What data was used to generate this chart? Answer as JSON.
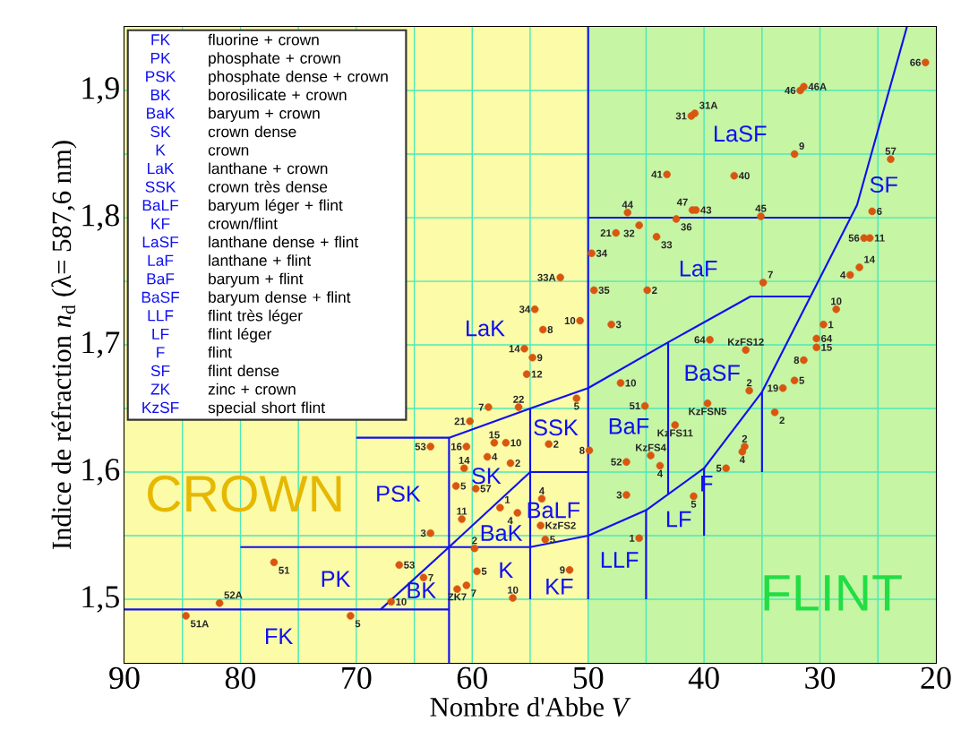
{
  "chart_data": {
    "type": "scatter",
    "xlabel": "Nombre d'Abbe *V*",
    "ylabel": "Indice de réfraction *n*$_{d}$  (λ= 587,6 nm)",
    "xlim": [
      90,
      20
    ],
    "ylim": [
      1.45,
      1.95
    ],
    "xticks": [
      90,
      80,
      70,
      60,
      50,
      40,
      30,
      20
    ],
    "yticks": [
      {
        "value": 1.5,
        "label": "1,5"
      },
      {
        "value": 1.6,
        "label": "1,6"
      },
      {
        "value": 1.7,
        "label": "1,7"
      },
      {
        "value": 1.8,
        "label": "1,8"
      },
      {
        "value": 1.9,
        "label": "1,9"
      }
    ],
    "grid": true,
    "bands": [
      {
        "axis": "x",
        "from": 90,
        "to": 50,
        "label": "CROWN",
        "color": "#fbfba8"
      },
      {
        "axis": "x",
        "from": 50,
        "to": 20,
        "label": "FLINT",
        "color": "#c6f5a4"
      }
    ],
    "series": [
      {
        "color": "#d9560f",
        "x": [
          84.7,
          81.8,
          77.1,
          70.5,
          67.0,
          66.3,
          64.2,
          63.6,
          63.6,
          60.5,
          60.7,
          61.4,
          59.7,
          60.9,
          59.8,
          59.6,
          60.5,
          61.3,
          56.5,
          57.6,
          56.1,
          54.1,
          53.7,
          51.6,
          45.6,
          52.4,
          54.6,
          50.7,
          53.9,
          55.5,
          54.8,
          55.3,
          58.6,
          56.0,
          60.2,
          51.0,
          58.1,
          57.1,
          58.7,
          56.7,
          53.4,
          49.9,
          49.5,
          44.9,
          48.0,
          47.2,
          45.1,
          44.6,
          43.8,
          46.7,
          46.7,
          54.0,
          42.5,
          39.5,
          49.7,
          20.9,
          31.7,
          31.4,
          41.1,
          40.8,
          32.2,
          23.9,
          43.2,
          37.4,
          46.6,
          41.0,
          40.7,
          35.1,
          42.4,
          45.6,
          47.6,
          44.1,
          25.5,
          26.2,
          25.7,
          26.6,
          27.4,
          34.9,
          28.6,
          29.7,
          30.3,
          30.3,
          31.4,
          32.2,
          33.2,
          33.9,
          36.1,
          36.4,
          39.7,
          36.5,
          36.7,
          38.1,
          40.9
        ],
        "values": [
          1.487,
          1.497,
          1.529,
          1.487,
          1.498,
          1.527,
          1.517,
          1.62,
          1.552,
          1.62,
          1.603,
          1.589,
          1.587,
          1.563,
          1.54,
          1.522,
          1.511,
          1.508,
          1.501,
          1.572,
          1.568,
          1.558,
          1.547,
          1.523,
          1.548,
          1.753,
          1.728,
          1.719,
          1.712,
          1.697,
          1.69,
          1.677,
          1.651,
          1.651,
          1.64,
          1.658,
          1.623,
          1.623,
          1.612,
          1.607,
          1.622,
          1.617,
          1.743,
          1.743,
          1.716,
          1.67,
          1.652,
          1.613,
          1.605,
          1.608,
          1.582,
          1.579,
          1.637,
          1.704,
          1.772,
          1.922,
          1.9,
          1.903,
          1.88,
          1.882,
          1.85,
          1.846,
          1.834,
          1.833,
          1.804,
          1.806,
          1.806,
          1.801,
          1.799,
          1.794,
          1.788,
          1.785,
          1.805,
          1.784,
          1.784,
          1.761,
          1.755,
          1.749,
          1.728,
          1.716,
          1.705,
          1.698,
          1.688,
          1.672,
          1.666,
          1.647,
          1.664,
          1.696,
          1.654,
          1.62,
          1.616,
          1.603,
          1.581
        ]
      },
      {
        "type": "line",
        "color": "#1010f0",
        "x": [
          90,
          62
        ],
        "values": [
          1.492,
          1.492
        ]
      },
      {
        "type": "line",
        "color": "#1010f0",
        "x": [
          62,
          62
        ],
        "values": [
          1.45,
          1.627
        ]
      },
      {
        "type": "line",
        "color": "#1010f0",
        "x": [
          80,
          55,
          50,
          45,
          40,
          35,
          26.8,
          22.5
        ],
        "values": [
          1.541,
          1.541,
          1.55,
          1.57,
          1.603,
          1.663,
          1.81,
          1.95
        ]
      },
      {
        "type": "line",
        "color": "#1010f0",
        "x": [
          67.9,
          62,
          55,
          50
        ],
        "values": [
          1.492,
          1.541,
          1.6,
          1.6
        ]
      },
      {
        "type": "line",
        "color": "#1010f0",
        "x": [
          55,
          55
        ],
        "values": [
          1.5,
          1.65
        ]
      },
      {
        "type": "line",
        "color": "#1010f0",
        "x": [
          50,
          50
        ],
        "values": [
          1.5,
          1.95
        ]
      },
      {
        "type": "line",
        "color": "#1010f0",
        "x": [
          70,
          62,
          55,
          50,
          43.1,
          36,
          30.9
        ],
        "values": [
          1.627,
          1.627,
          1.65,
          1.666,
          1.702,
          1.738,
          1.738
        ]
      },
      {
        "type": "line",
        "color": "#1010f0",
        "x": [
          43.1,
          43.1
        ],
        "values": [
          1.702,
          1.583
        ]
      },
      {
        "type": "line",
        "color": "#1010f0",
        "x": [
          45,
          45
        ],
        "values": [
          1.57,
          1.5
        ]
      },
      {
        "type": "line",
        "color": "#1010f0",
        "x": [
          40,
          40
        ],
        "values": [
          1.603,
          1.55
        ]
      },
      {
        "type": "line",
        "color": "#1010f0",
        "x": [
          35,
          35
        ],
        "values": [
          1.663,
          1.6
        ]
      },
      {
        "type": "line",
        "color": "#1010f0",
        "x": [
          50,
          27.4
        ],
        "values": [
          1.8,
          1.8
        ]
      }
    ],
    "annotations": [
      "FK",
      "fluorine + crown",
      "PK",
      "phosphate + crown",
      "PSK",
      "phosphate dense + crown",
      "BK",
      "borosilicate + crown",
      "BaK",
      "baryum + crown",
      "SK",
      "crown dense",
      "K",
      "crown",
      "LaK",
      "lanthane + crown",
      "SSK",
      "crown très dense",
      "BaLF",
      "baryum léger + flint",
      "KF",
      "crown/flint",
      "LaSF",
      "lanthane dense + flint",
      "LaF",
      "lanthane + flint",
      "BaF",
      "baryum + flint",
      "BaSF",
      "baryum dense + flint",
      "LLF",
      "flint très léger",
      "LF",
      "flint léger",
      "F",
      "flint",
      "SF",
      "flint dense",
      "ZK",
      "zinc + crown",
      "KzSF",
      "special short flint",
      "FK",
      "PK",
      "PSK",
      "BK",
      "BaK",
      "SK",
      "K",
      "LaK",
      "SSK",
      "BaLF",
      "KF",
      "LLF",
      "LF",
      "F",
      "BaF",
      "BaSF",
      "LaF",
      "LaSF",
      "SF",
      {
        "text": "51A",
        "x": 84.7,
        "y": 1.487
      },
      {
        "text": "52A",
        "x": 81.8,
        "y": 1.497
      },
      {
        "text": "51",
        "x": 77.1,
        "y": 1.529
      },
      {
        "text": "5",
        "x": 70.5,
        "y": 1.487
      },
      {
        "text": "10",
        "x": 67.0,
        "y": 1.498
      },
      {
        "text": "53",
        "x": 66.3,
        "y": 1.527
      },
      {
        "text": "7",
        "x": 64.2,
        "y": 1.517
      },
      {
        "text": "53",
        "x": 63.6,
        "y": 1.62
      },
      {
        "text": "3",
        "x": 63.6,
        "y": 1.552
      },
      {
        "text": "16",
        "x": 60.5,
        "y": 1.62
      },
      {
        "text": "14",
        "x": 60.7,
        "y": 1.603
      },
      {
        "text": "5",
        "x": 61.4,
        "y": 1.589
      },
      {
        "text": "57",
        "x": 59.7,
        "y": 1.587
      },
      {
        "text": "11",
        "x": 60.9,
        "y": 1.563
      },
      {
        "text": "2",
        "x": 59.8,
        "y": 1.54
      },
      {
        "text": "5",
        "x": 59.6,
        "y": 1.522
      },
      {
        "text": "7",
        "x": 60.5,
        "y": 1.511
      },
      {
        "text": "ZK7",
        "x": 61.3,
        "y": 1.508
      },
      {
        "text": "10",
        "x": 56.5,
        "y": 1.501
      },
      {
        "text": "1",
        "x": 57.6,
        "y": 1.572
      },
      {
        "text": "4",
        "x": 56.1,
        "y": 1.568
      },
      {
        "text": "KzFS2",
        "x": 54.1,
        "y": 1.558
      },
      {
        "text": "5",
        "x": 53.7,
        "y": 1.547
      },
      {
        "text": "9",
        "x": 51.6,
        "y": 1.523
      },
      {
        "text": "1",
        "x": 45.6,
        "y": 1.548
      },
      {
        "text": "33A",
        "x": 52.4,
        "y": 1.753
      },
      {
        "text": "34",
        "x": 54.6,
        "y": 1.728
      },
      {
        "text": "10",
        "x": 50.7,
        "y": 1.719
      },
      {
        "text": "8",
        "x": 53.9,
        "y": 1.712
      },
      {
        "text": "14",
        "x": 55.5,
        "y": 1.697
      },
      {
        "text": "9",
        "x": 54.8,
        "y": 1.69
      },
      {
        "text": "12",
        "x": 55.3,
        "y": 1.677
      },
      {
        "text": "7",
        "x": 58.6,
        "y": 1.651
      },
      {
        "text": "22",
        "x": 56.0,
        "y": 1.651
      },
      {
        "text": "21",
        "x": 60.2,
        "y": 1.64
      },
      {
        "text": "5",
        "x": 51.0,
        "y": 1.658
      },
      {
        "text": "15",
        "x": 58.1,
        "y": 1.623
      },
      {
        "text": "10",
        "x": 57.1,
        "y": 1.623
      },
      {
        "text": "4",
        "x": 58.7,
        "y": 1.612
      },
      {
        "text": "2",
        "x": 56.7,
        "y": 1.607
      },
      {
        "text": "2",
        "x": 53.4,
        "y": 1.622
      },
      {
        "text": "8",
        "x": 49.9,
        "y": 1.617
      },
      {
        "text": "35",
        "x": 49.5,
        "y": 1.743
      },
      {
        "text": "2",
        "x": 44.9,
        "y": 1.743
      },
      {
        "text": "3",
        "x": 48.0,
        "y": 1.716
      },
      {
        "text": "10",
        "x": 47.2,
        "y": 1.67
      },
      {
        "text": "51",
        "x": 45.1,
        "y": 1.652
      },
      {
        "text": "KzFS4",
        "x": 44.6,
        "y": 1.613
      },
      {
        "text": "4",
        "x": 43.8,
        "y": 1.605
      },
      {
        "text": "52",
        "x": 46.7,
        "y": 1.608
      },
      {
        "text": "3",
        "x": 46.7,
        "y": 1.582
      },
      {
        "text": "4",
        "x": 54.0,
        "y": 1.579
      },
      {
        "text": "KzFS11",
        "x": 42.5,
        "y": 1.637
      },
      {
        "text": "64",
        "x": 39.5,
        "y": 1.704
      },
      {
        "text": "34",
        "x": 49.7,
        "y": 1.772
      },
      {
        "text": "66",
        "x": 20.9,
        "y": 1.922
      },
      {
        "text": "46",
        "x": 31.7,
        "y": 1.9
      },
      {
        "text": "46A",
        "x": 31.4,
        "y": 1.903
      },
      {
        "text": "31",
        "x": 41.1,
        "y": 1.88
      },
      {
        "text": "31A",
        "x": 40.8,
        "y": 1.882
      },
      {
        "text": "9",
        "x": 32.2,
        "y": 1.85
      },
      {
        "text": "57",
        "x": 23.9,
        "y": 1.846
      },
      {
        "text": "41",
        "x": 43.2,
        "y": 1.834
      },
      {
        "text": "40",
        "x": 37.4,
        "y": 1.833
      },
      {
        "text": "44",
        "x": 46.6,
        "y": 1.804
      },
      {
        "text": "47",
        "x": 41.0,
        "y": 1.806
      },
      {
        "text": "43",
        "x": 40.7,
        "y": 1.806
      },
      {
        "text": "45",
        "x": 35.1,
        "y": 1.801
      },
      {
        "text": "36",
        "x": 42.4,
        "y": 1.799
      },
      {
        "text": "32",
        "x": 45.6,
        "y": 1.794
      },
      {
        "text": "21",
        "x": 47.6,
        "y": 1.788
      },
      {
        "text": "33",
        "x": 44.1,
        "y": 1.785
      },
      {
        "text": "6",
        "x": 25.5,
        "y": 1.805
      },
      {
        "text": "56",
        "x": 26.2,
        "y": 1.784
      },
      {
        "text": "11",
        "x": 25.7,
        "y": 1.784
      },
      {
        "text": "14",
        "x": 26.6,
        "y": 1.761
      },
      {
        "text": "4",
        "x": 27.4,
        "y": 1.755
      },
      {
        "text": "7",
        "x": 34.9,
        "y": 1.749
      },
      {
        "text": "10",
        "x": 28.6,
        "y": 1.728
      },
      {
        "text": "1",
        "x": 29.7,
        "y": 1.716
      },
      {
        "text": "64",
        "x": 30.3,
        "y": 1.705
      },
      {
        "text": "15",
        "x": 30.3,
        "y": 1.698
      },
      {
        "text": "8",
        "x": 31.4,
        "y": 1.688
      },
      {
        "text": "5",
        "x": 32.2,
        "y": 1.672
      },
      {
        "text": "19",
        "x": 33.2,
        "y": 1.666
      },
      {
        "text": "2",
        "x": 33.9,
        "y": 1.647
      },
      {
        "text": "2",
        "x": 36.1,
        "y": 1.664
      },
      {
        "text": "KzFS12",
        "x": 36.4,
        "y": 1.696
      },
      {
        "text": "KzFSN5",
        "x": 39.7,
        "y": 1.654
      },
      {
        "text": "2",
        "x": 36.5,
        "y": 1.62
      },
      {
        "text": "4",
        "x": 36.7,
        "y": 1.616
      },
      {
        "text": "5",
        "x": 38.1,
        "y": 1.603
      },
      {
        "text": "5",
        "x": 40.9,
        "y": 1.581
      }
    ]
  }
}
